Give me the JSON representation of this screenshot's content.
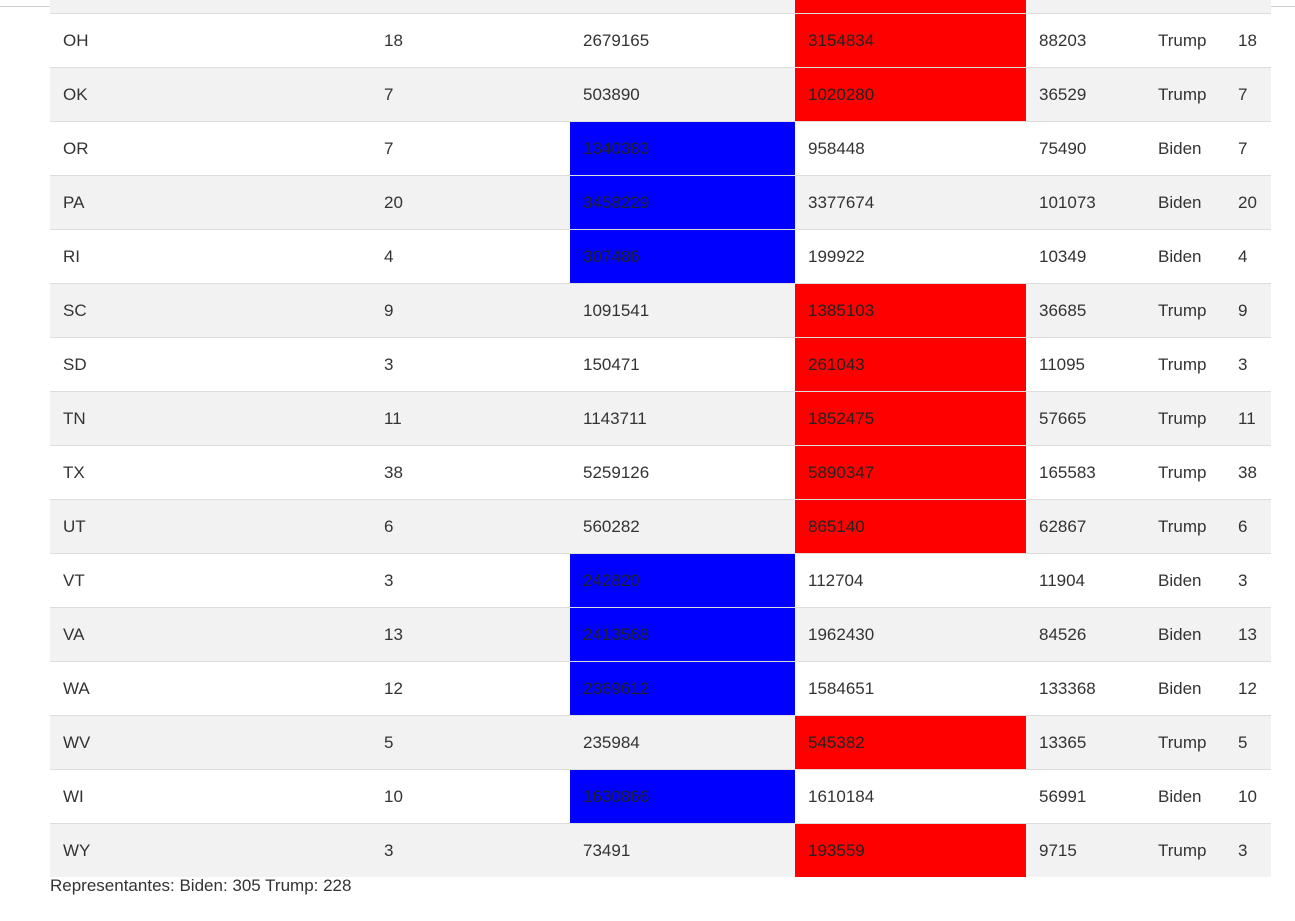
{
  "colors": {
    "biden_cell": "#0000ff",
    "trump_cell": "#ff0000",
    "striped_row": "#f2f2f2"
  },
  "rows": [
    {
      "state": "OH",
      "ev": "18",
      "biden": "2679165",
      "trump": "3154834",
      "other": "88203",
      "winner": "Trump",
      "awarded": "18"
    },
    {
      "state": "OK",
      "ev": "7",
      "biden": "503890",
      "trump": "1020280",
      "other": "36529",
      "winner": "Trump",
      "awarded": "7"
    },
    {
      "state": "OR",
      "ev": "7",
      "biden": "1340383",
      "trump": "958448",
      "other": "75490",
      "winner": "Biden",
      "awarded": "7"
    },
    {
      "state": "PA",
      "ev": "20",
      "biden": "3458229",
      "trump": "3377674",
      "other": "101073",
      "winner": "Biden",
      "awarded": "20"
    },
    {
      "state": "RI",
      "ev": "4",
      "biden": "307486",
      "trump": "199922",
      "other": "10349",
      "winner": "Biden",
      "awarded": "4"
    },
    {
      "state": "SC",
      "ev": "9",
      "biden": "1091541",
      "trump": "1385103",
      "other": "36685",
      "winner": "Trump",
      "awarded": "9"
    },
    {
      "state": "SD",
      "ev": "3",
      "biden": "150471",
      "trump": "261043",
      "other": "11095",
      "winner": "Trump",
      "awarded": "3"
    },
    {
      "state": "TN",
      "ev": "11",
      "biden": "1143711",
      "trump": "1852475",
      "other": "57665",
      "winner": "Trump",
      "awarded": "11"
    },
    {
      "state": "TX",
      "ev": "38",
      "biden": "5259126",
      "trump": "5890347",
      "other": "165583",
      "winner": "Trump",
      "awarded": "38"
    },
    {
      "state": "UT",
      "ev": "6",
      "biden": "560282",
      "trump": "865140",
      "other": "62867",
      "winner": "Trump",
      "awarded": "6"
    },
    {
      "state": "VT",
      "ev": "3",
      "biden": "242820",
      "trump": "112704",
      "other": "11904",
      "winner": "Biden",
      "awarded": "3"
    },
    {
      "state": "VA",
      "ev": "13",
      "biden": "2413568",
      "trump": "1962430",
      "other": "84526",
      "winner": "Biden",
      "awarded": "13"
    },
    {
      "state": "WA",
      "ev": "12",
      "biden": "2369612",
      "trump": "1584651",
      "other": "133368",
      "winner": "Biden",
      "awarded": "12"
    },
    {
      "state": "WV",
      "ev": "5",
      "biden": "235984",
      "trump": "545382",
      "other": "13365",
      "winner": "Trump",
      "awarded": "5"
    },
    {
      "state": "WI",
      "ev": "10",
      "biden": "1630866",
      "trump": "1610184",
      "other": "56991",
      "winner": "Biden",
      "awarded": "10"
    },
    {
      "state": "WY",
      "ev": "3",
      "biden": "73491",
      "trump": "193559",
      "other": "9715",
      "winner": "Trump",
      "awarded": "3"
    }
  ],
  "summary": {
    "text": "Representantes: Biden: 305 Trump: 228"
  }
}
